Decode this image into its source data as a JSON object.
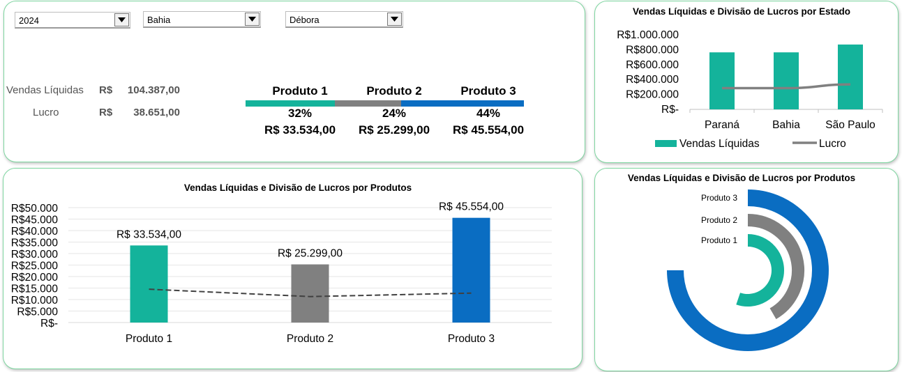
{
  "filters": {
    "year": "2024",
    "state": "Bahia",
    "seller": "Débora"
  },
  "kpis": {
    "sales_label": "Vendas Líquidas",
    "sales_currency": "R$",
    "sales_value": "104.387,00",
    "profit_label": "Lucro",
    "profit_currency": "R$",
    "profit_value": "38.651,00"
  },
  "products_summary": [
    {
      "name": "Produto 1",
      "pct": "32%",
      "amount": "R$ 33.534,00",
      "color": "#14b39b"
    },
    {
      "name": "Produto 2",
      "pct": "24%",
      "amount": "R$ 25.299,00",
      "color": "#808080"
    },
    {
      "name": "Produto 3",
      "pct": "44%",
      "amount": "R$ 45.554,00",
      "color": "#0a6dc2"
    }
  ],
  "colors": {
    "teal": "#14b39b",
    "gray": "#808080",
    "blue": "#0a6dc2",
    "line": "#808080",
    "border": "#7ed6a0"
  },
  "chart_data": [
    {
      "id": "by_state",
      "type": "bar",
      "title": "Vendas Líquidas e Divisão de Lucros por Estado",
      "categories": [
        "Paraná",
        "Bahia",
        "São Paulo"
      ],
      "series": [
        {
          "name": "Vendas Líquidas",
          "kind": "bar",
          "values": [
            765000,
            765000,
            870000
          ],
          "color": "#14b39b"
        },
        {
          "name": "Lucro",
          "kind": "line",
          "values": [
            285000,
            285000,
            335000
          ],
          "color": "#808080"
        }
      ],
      "ylim": [
        0,
        1000000
      ],
      "yticks": [
        "R$-",
        "R$200.000",
        "R$400.000",
        "R$600.000",
        "R$800.000",
        "R$1.000.000"
      ],
      "legend": "bottom"
    },
    {
      "id": "by_product",
      "type": "bar",
      "title": "Vendas Líquidas e Divisão de Lucros por Produtos",
      "categories": [
        "Produto 1",
        "Produto 2",
        "Produto 3"
      ],
      "series": [
        {
          "kind": "bar",
          "values": [
            33534,
            25299,
            45554
          ],
          "colors": [
            "#14b39b",
            "#808080",
            "#0a6dc2"
          ],
          "labels": [
            "R$ 33.534,00",
            "R$ 25.299,00",
            "R$ 45.554,00"
          ]
        },
        {
          "kind": "line",
          "values": [
            14500,
            11300,
            12800
          ],
          "color": "#404040",
          "dashed": true
        }
      ],
      "ylim": [
        0,
        50000
      ],
      "yticks": [
        "R$-",
        "R$5.000",
        "R$10.000",
        "R$15.000",
        "R$20.000",
        "R$25.000",
        "R$30.000",
        "R$35.000",
        "R$40.000",
        "R$45.000",
        "R$50.000"
      ],
      "grid": true
    },
    {
      "id": "radial",
      "type": "radial-bar",
      "title": "Vendas Líquidas e Divisão de Lucros por Produtos",
      "categories": [
        "Produto 3",
        "Produto 2",
        "Produto 1"
      ],
      "values": [
        45554,
        25299,
        33534
      ],
      "colors": [
        "#0a6dc2",
        "#808080",
        "#14b39b"
      ]
    }
  ]
}
